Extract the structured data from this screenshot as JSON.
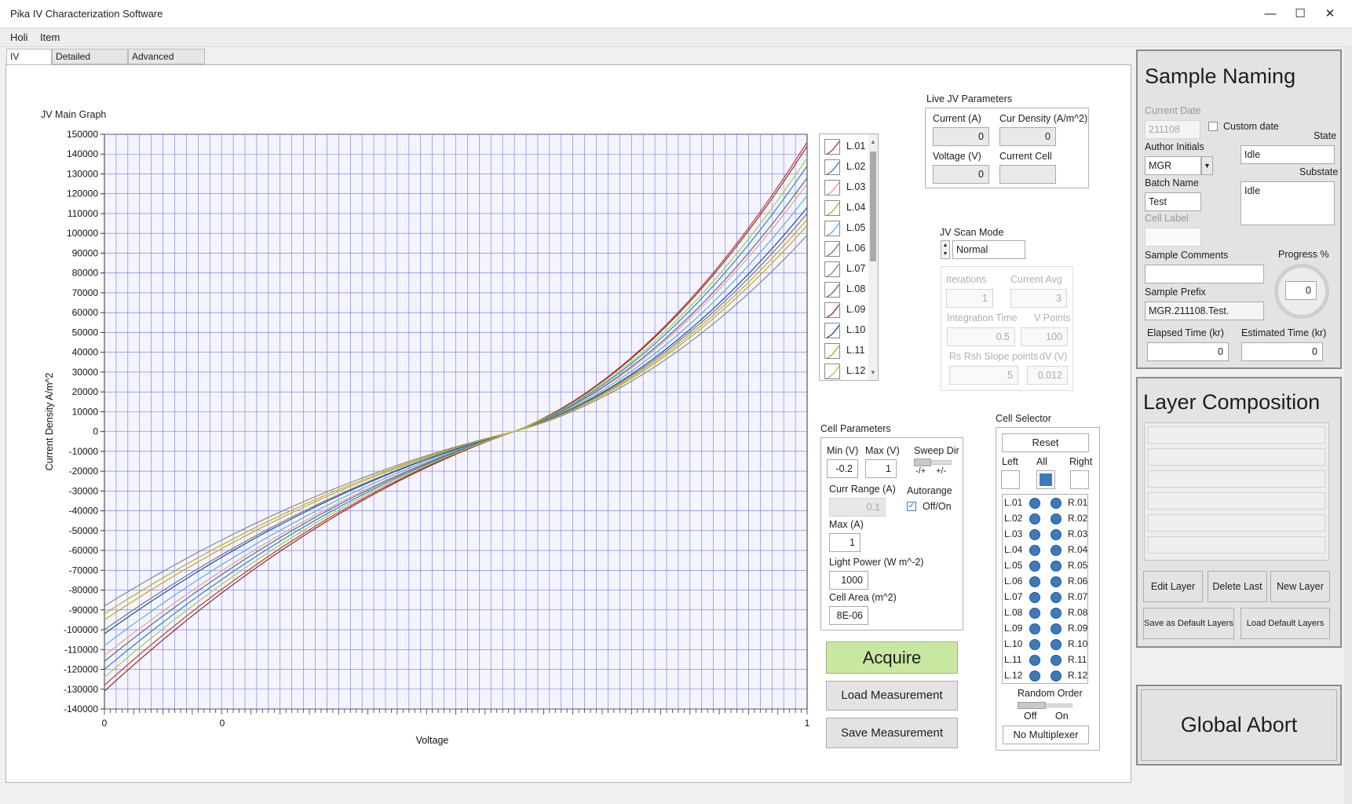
{
  "window": {
    "title": "Pika IV Characterization Software",
    "minimize": "—",
    "maximize": "☐",
    "close": "✕"
  },
  "menu": [
    "Holi",
    "Item"
  ],
  "tabs": [
    "IV Curves",
    "Detailed Analysis",
    "Advanced Config"
  ],
  "graph": {
    "title": "JV Main Graph"
  },
  "chart_data": {
    "type": "line",
    "xlabel": "Voltage",
    "ylabel": "Current Density A/m^2",
    "xlim": [
      -0.2,
      1
    ],
    "ylim": [
      -140000,
      150000
    ],
    "x_tick_labels": [
      "0",
      "0",
      "1"
    ],
    "y_ticks": [
      150000,
      140000,
      130000,
      120000,
      110000,
      100000,
      90000,
      80000,
      70000,
      60000,
      50000,
      40000,
      30000,
      20000,
      10000,
      0,
      -10000,
      -20000,
      -30000,
      -40000,
      -50000,
      -60000,
      -70000,
      -80000,
      -90000,
      -100000,
      -110000,
      -120000,
      -130000,
      -140000
    ],
    "grid": true,
    "series": [
      {
        "name": "L.01",
        "color": "#c0392b",
        "y_start": -128000,
        "y_end": 146000
      },
      {
        "name": "L.02",
        "color": "#2e86c1",
        "y_start": -120000,
        "y_end": 134000
      },
      {
        "name": "L.03",
        "color": "#e8a090",
        "y_start": -113000,
        "y_end": 125000
      },
      {
        "name": "L.04",
        "color": "#b7b02a",
        "y_start": -92000,
        "y_end": 104000
      },
      {
        "name": "L.05",
        "color": "#5dade2",
        "y_start": -108000,
        "y_end": 119000
      },
      {
        "name": "L.06",
        "color": "#6c7a89",
        "y_start": -100000,
        "y_end": 110000
      },
      {
        "name": "L.07",
        "color": "#7f8c8d",
        "y_start": -88000,
        "y_end": 99000
      },
      {
        "name": "L.08",
        "color": "#5d6d7e",
        "y_start": -116000,
        "y_end": 128000
      },
      {
        "name": "L.09",
        "color": "#922b21",
        "y_start": -131000,
        "y_end": 144000
      },
      {
        "name": "L.10",
        "color": "#1f4e9c",
        "y_start": -102000,
        "y_end": 113000
      },
      {
        "name": "L.11",
        "color": "#d4a017",
        "y_start": -95000,
        "y_end": 107000
      },
      {
        "name": "L.12",
        "color": "#a9cc52",
        "y_start": -124000,
        "y_end": 138000
      }
    ]
  },
  "legend": [
    "L.01",
    "L.02",
    "L.03",
    "L.04",
    "L.05",
    "L.06",
    "L.07",
    "L.08",
    "L.09",
    "L.10",
    "L.11",
    "L.12"
  ],
  "live": {
    "title": "Live JV Parameters",
    "current_label": "Current (A)",
    "current": "0",
    "curdens_label": "Cur Density (A/m^2)",
    "curdens": "0",
    "voltage_label": "Voltage (V)",
    "voltage": "0",
    "cell_label": "Current Cell",
    "cell": ""
  },
  "scan": {
    "title": "JV Scan Mode",
    "mode": "Normal",
    "iterations_label": "Iterations",
    "iterations": "1",
    "curavg_label": "Current Avg",
    "curavg": "3",
    "integ_label": "Integration Time",
    "integ": "0.5",
    "vpoints_label": "V Points",
    "vpoints": "100",
    "rsrsh_label": "Rs Rsh Slope points",
    "rsrsh": "5",
    "dv_label": "dV (V)",
    "dv": "0.012"
  },
  "cellparams": {
    "title": "Cell Parameters",
    "min_label": "Min (V)",
    "min": "-0.2",
    "max_label": "Max (V)",
    "max": "1",
    "sweep_label": "Sweep Dir",
    "sweep_neg": "-/+",
    "sweep_pos": "+/-",
    "currrange_label": "Curr Range (A)",
    "currrange": "0.1",
    "autorange_label": "Autorange",
    "autorange_val": "Off/On",
    "maxa_label": "Max (A)",
    "maxa": "1",
    "light_label": "Light Power (W m^-2)",
    "light": "1000",
    "area_label": "Cell Area (m^2)",
    "area": "8E-06"
  },
  "actions": {
    "acquire": "Acquire",
    "load": "Load Measurement",
    "save": "Save Measurement"
  },
  "selector": {
    "title": "Cell Selector",
    "reset": "Reset",
    "left": "Left",
    "all": "All",
    "right": "Right",
    "left_cells": [
      "L.01",
      "L.02",
      "L.03",
      "L.04",
      "L.05",
      "L.06",
      "L.07",
      "L.08",
      "L.09",
      "L.10",
      "L.11",
      "L.12"
    ],
    "right_cells": [
      "R.01",
      "R.02",
      "R.03",
      "R.04",
      "R.05",
      "R.06",
      "R.07",
      "R.08",
      "R.09",
      "R.10",
      "R.11",
      "R.12"
    ],
    "random_label": "Random Order",
    "off": "Off",
    "on": "On",
    "multiplexer": "No Multiplexer"
  },
  "naming": {
    "title": "Sample Naming",
    "date_label": "Current Date",
    "date": "211108",
    "custom_date": "Custom date",
    "state_label": "State",
    "state": "Idle",
    "author_label": "Author Initials",
    "author": "MGR",
    "substate_label": "Substate",
    "substate": "Idle",
    "batch_label": "Batch Name",
    "batch": "Test",
    "cell_label": "Cell Label",
    "cell": "",
    "comments_label": "Sample Comments",
    "comments": "",
    "progress_label": "Progress %",
    "progress": "0",
    "prefix_label": "Sample Prefix",
    "prefix": "MGR.211108.Test.",
    "elapsed_label": "Elapsed Time (kr)",
    "elapsed": "0",
    "estimated_label": "Estimated Time (kr)",
    "estimated": "0"
  },
  "layers": {
    "title": "Layer Composition",
    "edit": "Edit Layer",
    "delete": "Delete Last",
    "new": "New Layer",
    "save_default": "Save as Default Layers",
    "load_default": "Load Default Layers"
  },
  "abort": "Global Abort"
}
